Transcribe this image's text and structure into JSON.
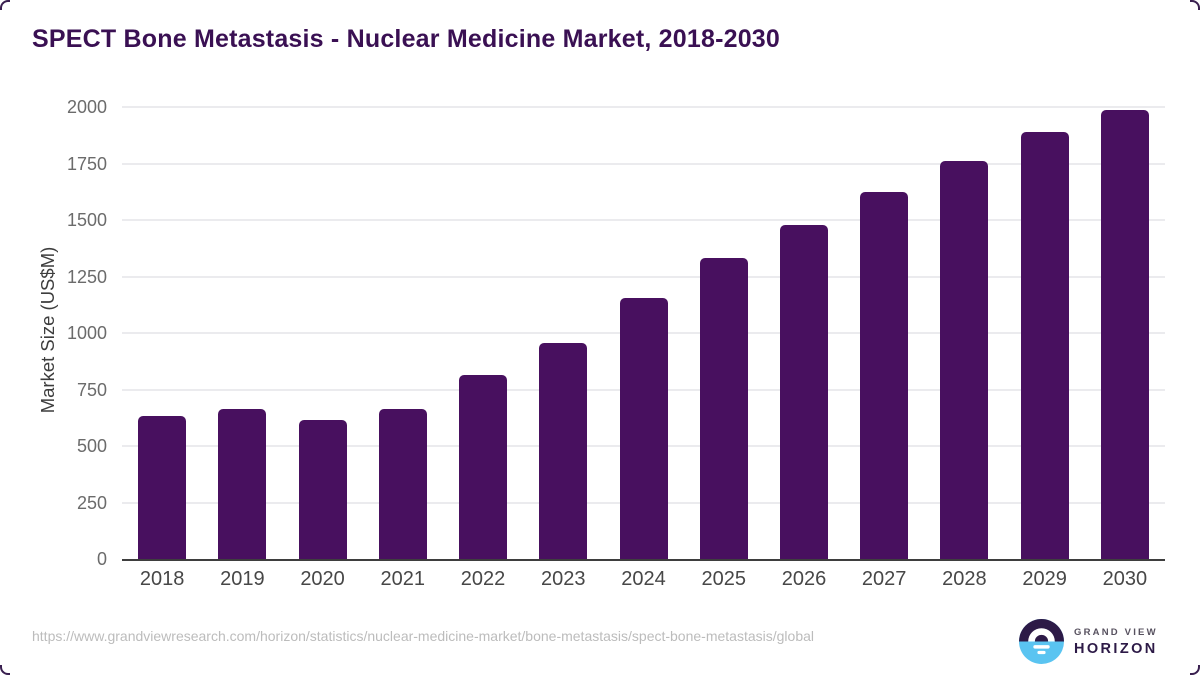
{
  "page": {
    "title": "SPECT Bone Metastasis - Nuclear Medicine Market, 2018-2030",
    "source_url": "https://www.grandviewresearch.com/horizon/statistics/nuclear-medicine-market/bone-metastasis/spect-bone-metastasis/global"
  },
  "logo": {
    "line1": "GRAND VIEW",
    "line2": "HORIZON"
  },
  "colors": {
    "bar": "#48105f",
    "title": "#3a1053",
    "axis": "#3e3e3e",
    "gridline": "#ebebee",
    "y_tick_label": "#6b6b6b",
    "x_label": "#474747",
    "url_text": "#bcbcbc",
    "logo_dark": "#2d1a47",
    "logo_blue": "#5ac4f1"
  },
  "chart_data": {
    "type": "bar",
    "title": "SPECT Bone Metastasis - Nuclear Medicine Market, 2018-2030",
    "categories": [
      "2018",
      "2019",
      "2020",
      "2021",
      "2022",
      "2023",
      "2024",
      "2025",
      "2026",
      "2027",
      "2028",
      "2029",
      "2030"
    ],
    "values": [
      632,
      665,
      616,
      665,
      814,
      956,
      1155,
      1334,
      1478,
      1622,
      1762,
      1888,
      1988
    ],
    "xlabel": "",
    "ylabel": "Market Size (US$M)",
    "ylim": [
      0,
      2000
    ],
    "yticks": [
      0,
      250,
      500,
      750,
      1000,
      1250,
      1500,
      1750,
      2000
    ],
    "grid": true,
    "legend_position": "none"
  }
}
